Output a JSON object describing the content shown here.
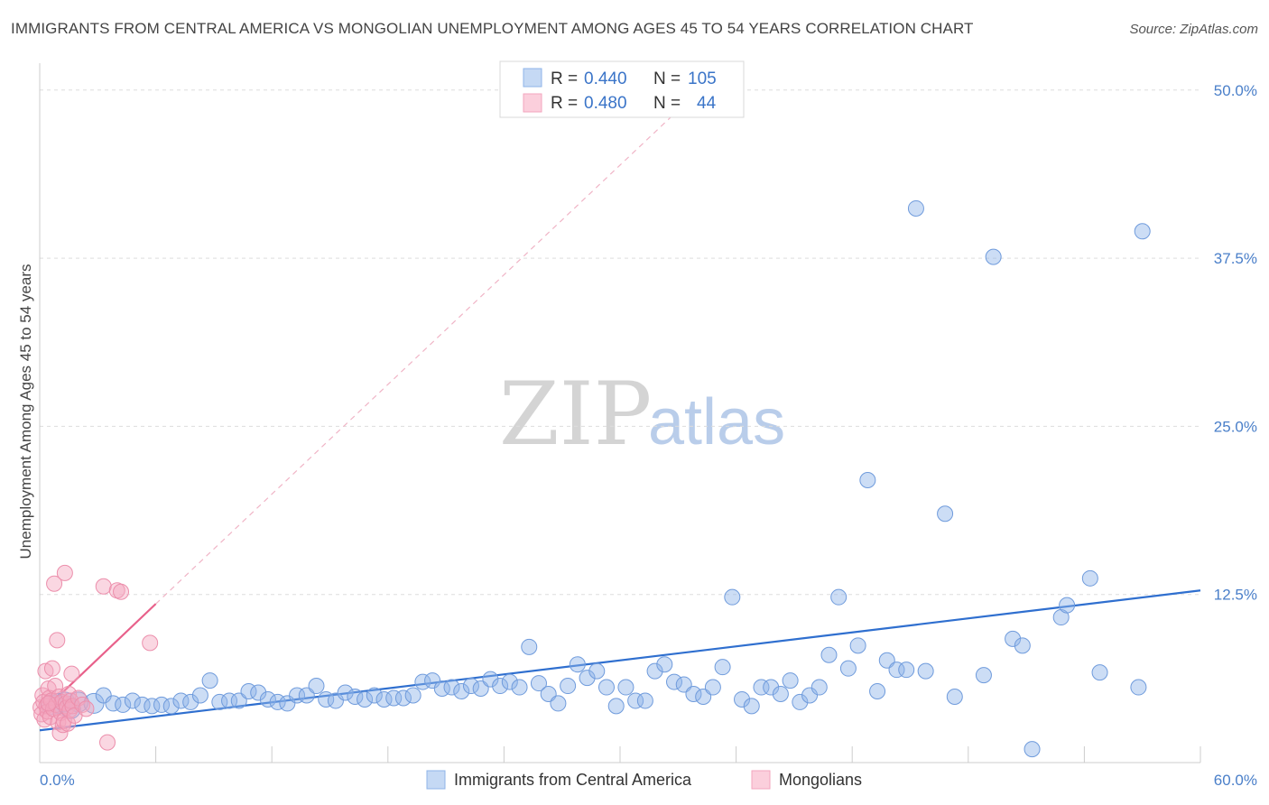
{
  "title": "IMMIGRANTS FROM CENTRAL AMERICA VS MONGOLIAN UNEMPLOYMENT AMONG AGES 45 TO 54 YEARS CORRELATION CHART",
  "source": "Source: ZipAtlas.com",
  "watermark": {
    "zip": "ZIP",
    "atlas": "atlas"
  },
  "colors": {
    "blue": "#8fb4e8",
    "blue_line": "#2f6fcf",
    "pink": "#f3a6be",
    "pink_line": "#e8608a",
    "tick": "#4a7fc9"
  },
  "legend_top": {
    "rows": [
      {
        "r_label": "R = ",
        "r_value": "0.440",
        "n_label": "N = ",
        "n_value": "105"
      },
      {
        "r_label": "R = ",
        "r_value": "0.480",
        "n_label": "N = ",
        "n_value": "44"
      }
    ]
  },
  "legend_bottom": [
    "Immigrants from Central America",
    "Mongolians"
  ],
  "chart_data": {
    "type": "scatter",
    "title": "IMMIGRANTS FROM CENTRAL AMERICA VS MONGOLIAN UNEMPLOYMENT AMONG AGES 45 TO 54 YEARS CORRELATION CHART",
    "xlabel": "",
    "ylabel": "Unemployment Among Ages 45 to 54 years",
    "xlim": [
      0,
      60
    ],
    "ylim": [
      0,
      52
    ],
    "x_tick_labels": [
      "0.0%",
      "60.0%"
    ],
    "y_ticks": [
      12.5,
      25.0,
      37.5,
      50.0
    ],
    "y_tick_labels": [
      "12.5%",
      "25.0%",
      "37.5%",
      "50.0%"
    ],
    "grid": true,
    "series": [
      {
        "name": "Immigrants from Central America",
        "R": 0.44,
        "N": 105,
        "trend": {
          "x": [
            0,
            60
          ],
          "y": [
            2.4,
            12.8
          ],
          "style": "solid"
        },
        "points": [
          [
            0.6,
            4.3
          ],
          [
            1.0,
            4.4
          ],
          [
            1.3,
            4.5
          ],
          [
            1.6,
            4.0
          ],
          [
            2.0,
            4.5
          ],
          [
            2.8,
            4.4
          ],
          [
            3.3,
            5.0
          ],
          [
            3.8,
            4.4
          ],
          [
            4.3,
            4.3
          ],
          [
            4.8,
            4.6
          ],
          [
            5.3,
            4.3
          ],
          [
            5.8,
            4.2
          ],
          [
            6.3,
            4.3
          ],
          [
            6.8,
            4.2
          ],
          [
            7.3,
            4.6
          ],
          [
            7.8,
            4.5
          ],
          [
            8.3,
            5.0
          ],
          [
            8.8,
            6.1
          ],
          [
            9.3,
            4.5
          ],
          [
            9.8,
            4.6
          ],
          [
            10.3,
            4.6
          ],
          [
            10.8,
            5.3
          ],
          [
            11.3,
            5.2
          ],
          [
            11.8,
            4.7
          ],
          [
            12.3,
            4.5
          ],
          [
            12.8,
            4.4
          ],
          [
            13.3,
            5.0
          ],
          [
            13.8,
            5.0
          ],
          [
            14.3,
            5.7
          ],
          [
            14.8,
            4.7
          ],
          [
            15.3,
            4.6
          ],
          [
            15.8,
            5.2
          ],
          [
            16.3,
            4.9
          ],
          [
            16.8,
            4.7
          ],
          [
            17.3,
            5.0
          ],
          [
            17.8,
            4.7
          ],
          [
            18.3,
            4.8
          ],
          [
            18.8,
            4.8
          ],
          [
            19.3,
            5.0
          ],
          [
            19.8,
            6.0
          ],
          [
            20.3,
            6.1
          ],
          [
            20.8,
            5.5
          ],
          [
            21.3,
            5.6
          ],
          [
            21.8,
            5.3
          ],
          [
            22.3,
            5.7
          ],
          [
            22.8,
            5.5
          ],
          [
            23.3,
            6.2
          ],
          [
            23.8,
            5.7
          ],
          [
            24.3,
            6.0
          ],
          [
            24.8,
            5.6
          ],
          [
            25.3,
            8.6
          ],
          [
            25.8,
            5.9
          ],
          [
            26.3,
            5.1
          ],
          [
            26.8,
            4.4
          ],
          [
            27.3,
            5.7
          ],
          [
            27.8,
            7.3
          ],
          [
            28.3,
            6.3
          ],
          [
            28.8,
            6.8
          ],
          [
            29.3,
            5.6
          ],
          [
            29.8,
            4.2
          ],
          [
            30.3,
            5.6
          ],
          [
            30.8,
            4.6
          ],
          [
            31.3,
            4.6
          ],
          [
            31.8,
            6.8
          ],
          [
            32.3,
            7.3
          ],
          [
            32.8,
            6.0
          ],
          [
            33.3,
            5.8
          ],
          [
            33.8,
            5.1
          ],
          [
            34.3,
            4.9
          ],
          [
            34.8,
            5.6
          ],
          [
            35.3,
            7.1
          ],
          [
            35.8,
            12.3
          ],
          [
            36.3,
            4.7
          ],
          [
            36.8,
            4.2
          ],
          [
            37.3,
            5.6
          ],
          [
            37.8,
            5.6
          ],
          [
            38.3,
            5.1
          ],
          [
            38.8,
            6.1
          ],
          [
            39.3,
            4.5
          ],
          [
            39.8,
            5.0
          ],
          [
            40.3,
            5.6
          ],
          [
            40.8,
            8.0
          ],
          [
            41.3,
            12.3
          ],
          [
            41.8,
            7.0
          ],
          [
            42.3,
            8.7
          ],
          [
            42.8,
            21.0
          ],
          [
            43.3,
            5.3
          ],
          [
            43.8,
            7.6
          ],
          [
            44.3,
            6.9
          ],
          [
            44.8,
            6.9
          ],
          [
            45.3,
            41.2
          ],
          [
            45.8,
            6.8
          ],
          [
            46.8,
            18.5
          ],
          [
            47.3,
            4.9
          ],
          [
            48.8,
            6.5
          ],
          [
            49.3,
            37.6
          ],
          [
            50.3,
            9.2
          ],
          [
            50.8,
            8.7
          ],
          [
            51.3,
            1.0
          ],
          [
            52.8,
            10.8
          ],
          [
            53.1,
            11.7
          ],
          [
            54.3,
            13.7
          ],
          [
            54.8,
            6.7
          ],
          [
            56.8,
            5.6
          ],
          [
            57.0,
            39.5
          ]
        ]
      },
      {
        "name": "Mongolians",
        "R": 0.48,
        "N": 44,
        "trend": {
          "x": [
            0,
            6.0
          ],
          "y": [
            3.6,
            11.8
          ],
          "style": "solid"
        },
        "trend_extended": {
          "x": [
            6.0,
            33.0
          ],
          "y": [
            11.8,
            48.5
          ],
          "style": "dashed"
        },
        "points": [
          [
            0.05,
            4.1
          ],
          [
            0.1,
            3.6
          ],
          [
            0.15,
            5.0
          ],
          [
            0.2,
            4.5
          ],
          [
            0.25,
            3.2
          ],
          [
            0.3,
            6.8
          ],
          [
            0.35,
            4.2
          ],
          [
            0.4,
            3.8
          ],
          [
            0.45,
            5.5
          ],
          [
            0.5,
            4.8
          ],
          [
            0.55,
            3.4
          ],
          [
            0.6,
            4.6
          ],
          [
            0.65,
            7.0
          ],
          [
            0.7,
            4.0
          ],
          [
            0.75,
            13.3
          ],
          [
            0.8,
            5.7
          ],
          [
            0.85,
            4.3
          ],
          [
            0.9,
            9.1
          ],
          [
            0.95,
            3.0
          ],
          [
            1.0,
            4.9
          ],
          [
            1.05,
            2.2
          ],
          [
            1.1,
            3.7
          ],
          [
            1.15,
            4.5
          ],
          [
            1.2,
            2.8
          ],
          [
            1.25,
            3.1
          ],
          [
            1.3,
            14.1
          ],
          [
            1.35,
            4.4
          ],
          [
            1.4,
            4.1
          ],
          [
            1.45,
            2.9
          ],
          [
            1.5,
            5.1
          ],
          [
            1.55,
            3.9
          ],
          [
            1.6,
            4.6
          ],
          [
            1.65,
            6.6
          ],
          [
            1.7,
            4.2
          ],
          [
            1.8,
            3.5
          ],
          [
            2.0,
            4.8
          ],
          [
            2.2,
            4.3
          ],
          [
            2.4,
            4.0
          ],
          [
            3.3,
            13.1
          ],
          [
            3.5,
            1.5
          ],
          [
            4.0,
            12.8
          ],
          [
            4.2,
            12.7
          ],
          [
            5.7,
            8.9
          ],
          [
            0.45,
            4.4
          ]
        ]
      }
    ]
  }
}
